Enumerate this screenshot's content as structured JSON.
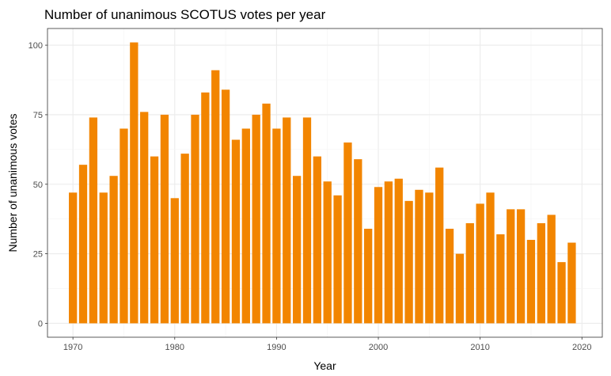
{
  "chart_data": {
    "type": "bar",
    "title": "Number of unanimous SCOTUS votes per year",
    "xlabel": "Year",
    "ylabel": "Number of unanimous votes",
    "x": [
      1970,
      1971,
      1972,
      1973,
      1974,
      1975,
      1976,
      1977,
      1978,
      1979,
      1980,
      1981,
      1982,
      1983,
      1984,
      1985,
      1986,
      1987,
      1988,
      1989,
      1990,
      1991,
      1992,
      1993,
      1994,
      1995,
      1996,
      1997,
      1998,
      1999,
      2000,
      2001,
      2002,
      2003,
      2004,
      2005,
      2006,
      2007,
      2008,
      2009,
      2010,
      2011,
      2012,
      2013,
      2014,
      2015,
      2016,
      2017,
      2018,
      2019
    ],
    "values": [
      47,
      57,
      74,
      47,
      53,
      70,
      101,
      76,
      60,
      75,
      45,
      61,
      75,
      83,
      91,
      84,
      66,
      70,
      75,
      79,
      70,
      74,
      53,
      74,
      60,
      51,
      46,
      65,
      59,
      34,
      49,
      51,
      52,
      44,
      48,
      47,
      56,
      34,
      25,
      36,
      43,
      47,
      32,
      41,
      41,
      30,
      36,
      39,
      22,
      29
    ],
    "xlim": [
      1967.5,
      2022
    ],
    "ylim": [
      -5,
      106
    ],
    "xticks": [
      "1970",
      "1980",
      "1990",
      "2000",
      "2010",
      "2020"
    ],
    "yticks": [
      "0",
      "25",
      "50",
      "75",
      "100"
    ],
    "bar_color": "#F28500",
    "grid": true,
    "legend": "none"
  }
}
